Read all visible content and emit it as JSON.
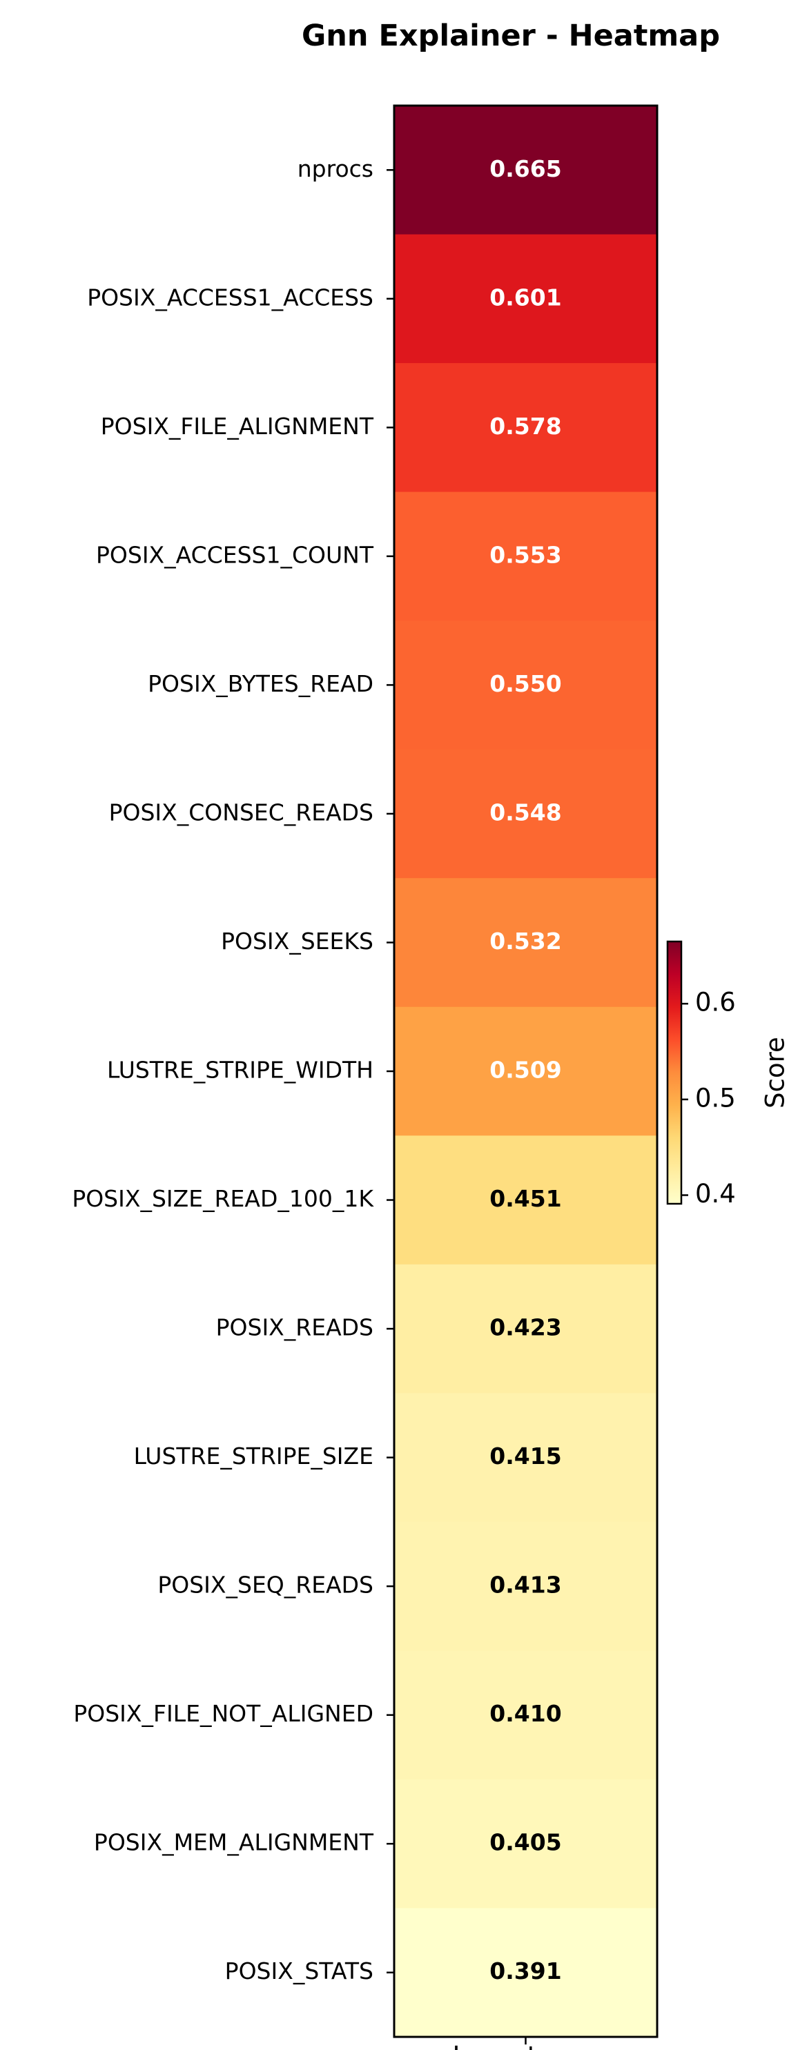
{
  "chart_data": {
    "type": "heatmap",
    "title": "Gnn Explainer - Heatmap",
    "xlabel": "Importance",
    "colorbar_label": "Score",
    "colorbar_ticks": [
      0.4,
      0.5,
      0.6
    ],
    "colorbar_range": [
      0.391,
      0.665
    ],
    "colormap": "YlOrRd",
    "rows": [
      {
        "label": "nprocs",
        "value": 0.665,
        "value_label": "0.665"
      },
      {
        "label": "POSIX_ACCESS1_ACCESS",
        "value": 0.601,
        "value_label": "0.601"
      },
      {
        "label": "POSIX_FILE_ALIGNMENT",
        "value": 0.578,
        "value_label": "0.578"
      },
      {
        "label": "POSIX_ACCESS1_COUNT",
        "value": 0.553,
        "value_label": "0.553"
      },
      {
        "label": "POSIX_BYTES_READ",
        "value": 0.55,
        "value_label": "0.550"
      },
      {
        "label": "POSIX_CONSEC_READS",
        "value": 0.548,
        "value_label": "0.548"
      },
      {
        "label": "POSIX_SEEKS",
        "value": 0.532,
        "value_label": "0.532"
      },
      {
        "label": "LUSTRE_STRIPE_WIDTH",
        "value": 0.509,
        "value_label": "0.509"
      },
      {
        "label": "POSIX_SIZE_READ_100_1K",
        "value": 0.451,
        "value_label": "0.451"
      },
      {
        "label": "POSIX_READS",
        "value": 0.423,
        "value_label": "0.423"
      },
      {
        "label": "LUSTRE_STRIPE_SIZE",
        "value": 0.415,
        "value_label": "0.415"
      },
      {
        "label": "POSIX_SEQ_READS",
        "value": 0.413,
        "value_label": "0.413"
      },
      {
        "label": "POSIX_FILE_NOT_ALIGNED",
        "value": 0.41,
        "value_label": "0.410"
      },
      {
        "label": "POSIX_MEM_ALIGNMENT",
        "value": 0.405,
        "value_label": "0.405"
      },
      {
        "label": "POSIX_STATS",
        "value": 0.391,
        "value_label": "0.391"
      }
    ]
  }
}
